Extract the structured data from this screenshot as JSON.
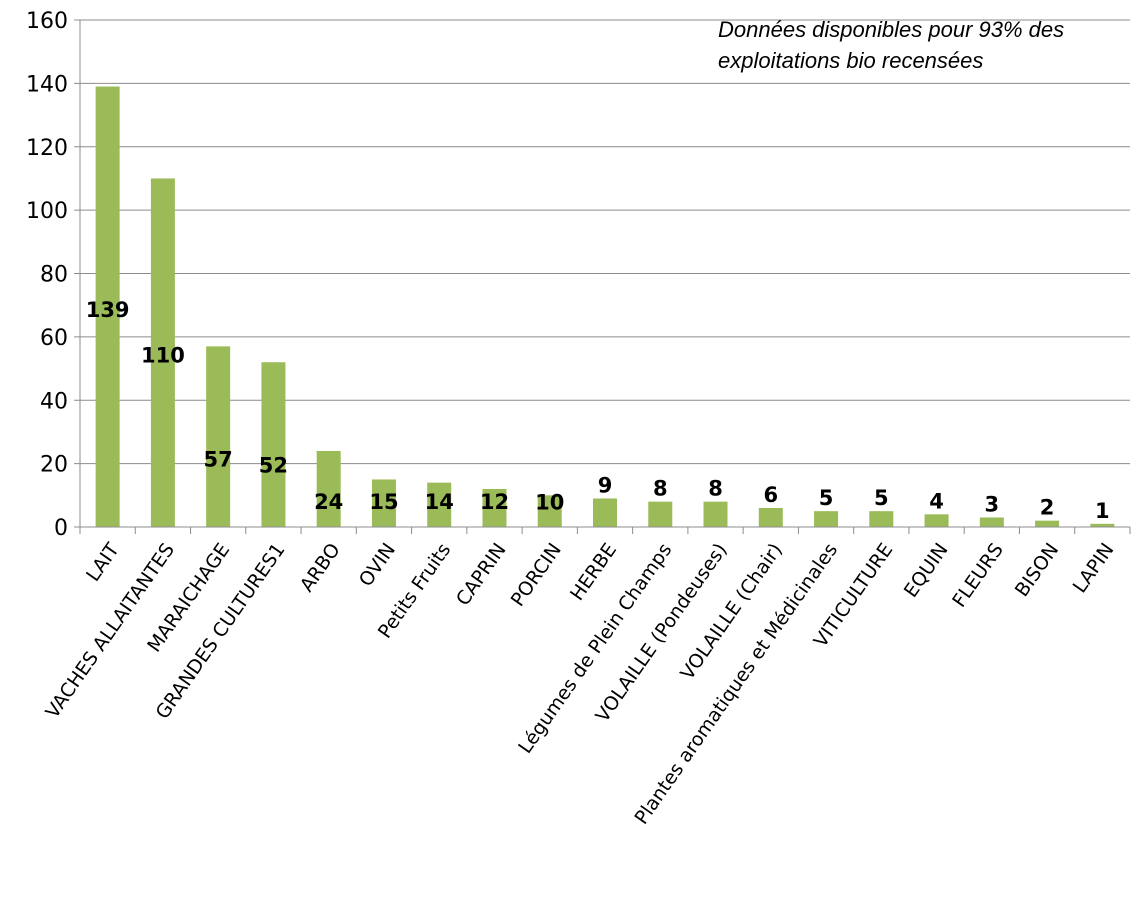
{
  "chart_data": {
    "type": "bar",
    "title": "",
    "xlabel": "",
    "ylabel": "",
    "categories": [
      "LAIT",
      "VACHES ALLAITANTES",
      "MARAICHAGE",
      "GRANDES CULTURES1",
      "ARBO",
      "OVIN",
      "Petits Fruits",
      "CAPRIN",
      "PORCIN",
      "HERBE",
      "Légumes de Plein Champs",
      "VOLAILLE (Pondeuses)",
      "VOLAILLE (Chair)",
      "Plantes aromatiques et Médicinales",
      "VITICULTURE",
      "EQUIN",
      "FLEURS",
      "BISON",
      "LAPIN"
    ],
    "values": [
      139,
      110,
      57,
      52,
      24,
      15,
      14,
      12,
      10,
      9,
      8,
      8,
      6,
      5,
      5,
      4,
      3,
      2,
      1
    ],
    "data_labels": [
      "139",
      "110",
      "57",
      "52",
      "24",
      "15",
      "14",
      "12",
      "10",
      "9",
      "8",
      "8",
      "6",
      "5",
      "5",
      "4",
      "3",
      "2",
      "1"
    ],
    "y_ticks": [
      "0",
      "20",
      "40",
      "60",
      "80",
      "100",
      "120",
      "140",
      "160"
    ],
    "ylim": [
      0,
      160
    ],
    "grid": true,
    "legend": "none",
    "bar_color": "#9BBB59",
    "annotation": {
      "line1": "Données disponibles pour 93% des",
      "line2": "exploitations bio recensées"
    }
  }
}
